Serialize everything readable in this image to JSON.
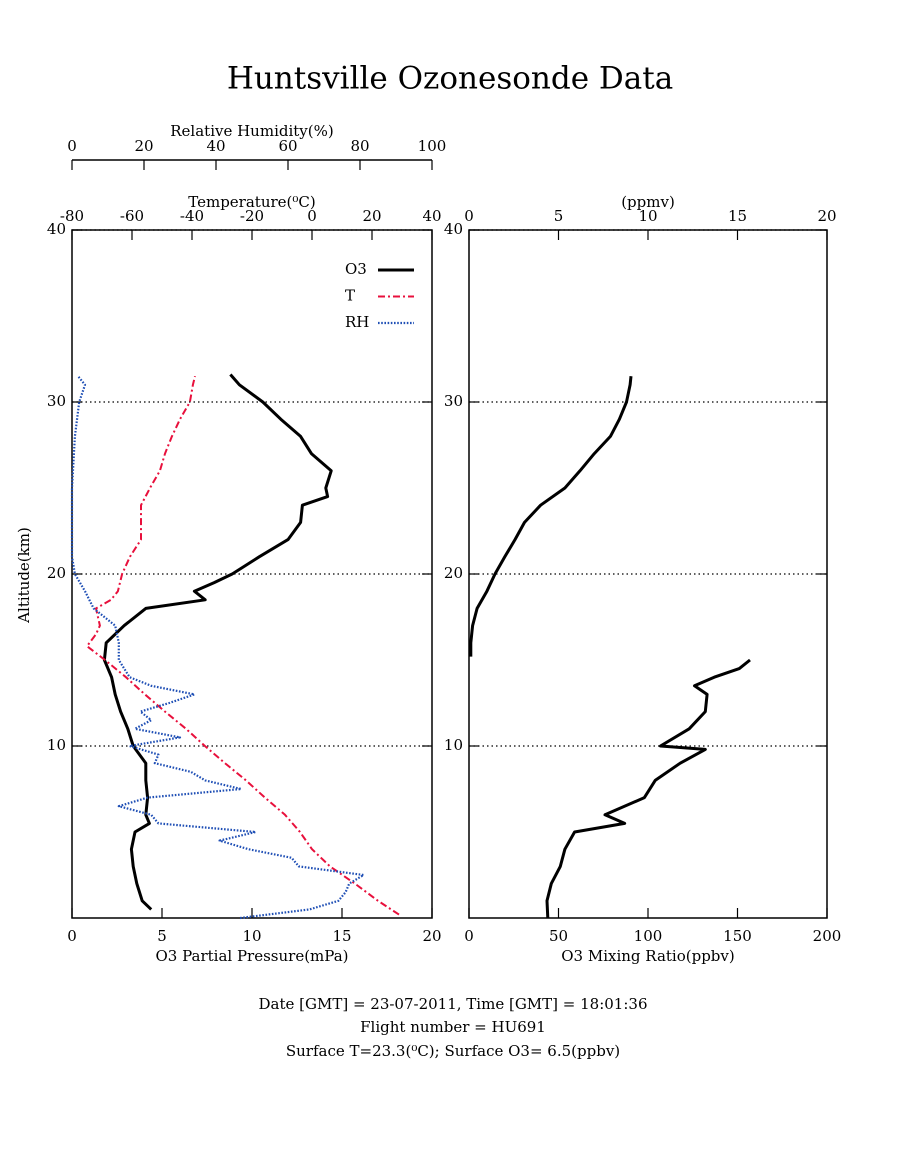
{
  "footer": [
    "Date [GMT] = 23-07-2011,  Time [GMT] = 18:01:36",
    "Flight number = HU691",
    "Surface T=23.3(⁰C); Surface O3= 6.5(ppbv)"
  ],
  "chart_data": [
    {
      "type": "line",
      "title": "Huntsville Ozonesonde Data",
      "ylabel": "Altitude(km)",
      "ylim": [
        0,
        40
      ],
      "yticks": [
        10,
        20,
        30,
        40
      ],
      "grid": true,
      "xlabel": "O3 Partial Pressure(mPa)",
      "xlim": [
        0,
        20
      ],
      "xticks": [
        0,
        5,
        10,
        15,
        20
      ],
      "x2label": "Temperature(⁰C)",
      "x2lim": [
        -80,
        40
      ],
      "x2ticks": [
        -80,
        -60,
        -40,
        -20,
        0,
        20,
        40
      ],
      "x3label": "Relative Humidity(%)",
      "x3lim": [
        0,
        100
      ],
      "x3ticks": [
        0,
        20,
        40,
        60,
        80,
        100
      ],
      "legend": "upper right",
      "series": [
        {
          "name": "O3",
          "color": "#000000",
          "style": "solid",
          "axis": "x",
          "altitude": [
            0.5,
            1,
            2,
            3,
            4,
            5,
            5.5,
            6,
            7,
            8,
            9,
            10,
            11,
            12,
            13,
            14,
            15,
            16,
            17,
            18,
            18.5,
            19,
            19.5,
            20,
            21,
            22,
            23,
            24,
            24.5,
            25,
            26,
            27,
            28,
            29,
            30,
            31,
            31.6
          ],
          "values": [
            4.4,
            3.9,
            3.6,
            3.4,
            3.3,
            3.5,
            4.3,
            4.1,
            4.2,
            4.1,
            4.1,
            3.4,
            3.1,
            2.7,
            2.4,
            2.2,
            1.8,
            1.9,
            2.9,
            4.1,
            7.4,
            6.8,
            7.9,
            8.9,
            10.4,
            12,
            12.7,
            12.8,
            14.2,
            14.1,
            14.4,
            13.3,
            12.7,
            11.6,
            10.6,
            9.3,
            8.8
          ]
        },
        {
          "name": "T",
          "color": "#e8103c",
          "style": "dashdot",
          "axis": "x2",
          "altitude": [
            0.2,
            1,
            2,
            3,
            4,
            5,
            6,
            7,
            8,
            9,
            10,
            11,
            12,
            13,
            14,
            15,
            15.8,
            16.5,
            17,
            18,
            18.5,
            19,
            20,
            21,
            22,
            23,
            24,
            25,
            26,
            27,
            28,
            29,
            30,
            31,
            31.5
          ],
          "values": [
            29,
            22,
            14.3,
            6,
            0,
            -4,
            -9,
            -15.7,
            -22,
            -29,
            -35.7,
            -42,
            -49,
            -55.7,
            -62,
            -69,
            -75,
            -72,
            -70.7,
            -72,
            -67,
            -64.7,
            -63.3,
            -60.7,
            -57,
            -57,
            -57,
            -54,
            -50.7,
            -49,
            -46.7,
            -44,
            -40.7,
            -39.7,
            -39
          ]
        },
        {
          "name": "RH",
          "color": "#1f4fb5",
          "style": "dotted",
          "axis": "x3",
          "altitude": [
            0,
            0.5,
            1,
            1.5,
            2,
            2.5,
            3,
            3.5,
            4,
            4.5,
            5,
            5.5,
            6,
            6.5,
            7,
            7.5,
            8,
            8.5,
            9,
            9.5,
            10,
            10.5,
            11,
            11.5,
            12,
            12.5,
            13,
            13.5,
            14,
            15,
            16,
            17,
            18,
            19,
            20,
            21,
            25,
            28,
            30,
            31,
            31.5
          ],
          "values": [
            46.7,
            66,
            74,
            76,
            77,
            81,
            63,
            61,
            49,
            41,
            51,
            24,
            22,
            13,
            21,
            47,
            37,
            33,
            23,
            24,
            16,
            30,
            17.5,
            22,
            19,
            27,
            34,
            22,
            16,
            13,
            13,
            12,
            6,
            3.6,
            0.8,
            0,
            0,
            0.8,
            2,
            3.6,
            1.7
          ]
        }
      ]
    },
    {
      "type": "line",
      "ylim": [
        0,
        40
      ],
      "yticks": [
        10,
        20,
        30,
        40
      ],
      "grid": true,
      "xlabel": "O3 Mixing Ratio(ppbv)",
      "xlim": [
        0,
        200
      ],
      "xticks": [
        0,
        50,
        100,
        150,
        200
      ],
      "x2label": "(ppmv)",
      "x2lim": [
        0,
        20
      ],
      "x2ticks": [
        0,
        5,
        10,
        15,
        20
      ],
      "series": [
        {
          "color": "#000000",
          "style": "solid",
          "axis": "x",
          "altitude": [
            0,
            1,
            2,
            3,
            4,
            5,
            5.5,
            6,
            7,
            8,
            9,
            9.8,
            10,
            11,
            12,
            13,
            13.5,
            14,
            14.5,
            15,
            null,
            15.2,
            16,
            17,
            18,
            19,
            20,
            21,
            22,
            23,
            24,
            25,
            26,
            27,
            28,
            29,
            30,
            31,
            31.5
          ],
          "values": [
            44,
            43.6,
            46,
            51,
            53.6,
            59,
            87,
            76,
            98,
            104,
            118,
            132,
            107,
            123,
            132,
            133,
            126,
            137,
            151,
            157,
            null,
            1,
            1,
            2,
            4.5,
            10,
            14.5,
            20,
            25.7,
            31,
            40,
            53.6,
            62,
            70,
            79,
            84,
            88,
            90,
            90.5
          ]
        }
      ]
    }
  ]
}
